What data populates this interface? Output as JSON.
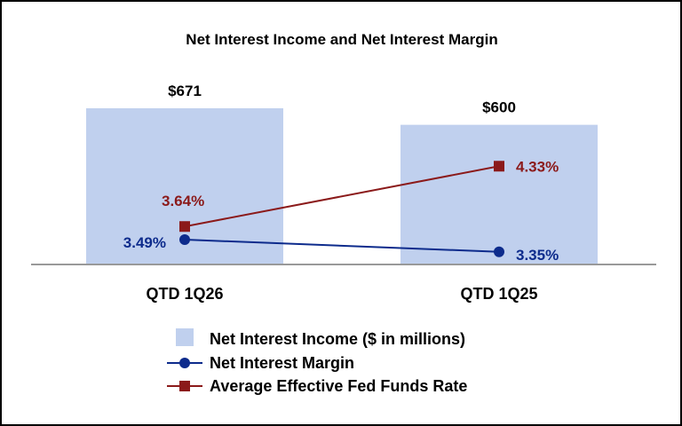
{
  "chart_data": {
    "type": "bar",
    "title": "Net Interest Income and Net Interest Margin",
    "categories": [
      "QTD 1Q26",
      "QTD 1Q25"
    ],
    "series": [
      {
        "name": "Net Interest Income ($ in millions)",
        "type": "bar",
        "values": [
          671,
          600
        ],
        "labels": [
          "$671",
          "$600"
        ],
        "color": "#c0d0ee"
      },
      {
        "name": "Net Interest Margin",
        "type": "line",
        "marker": "circle",
        "values": [
          3.49,
          3.35
        ],
        "labels": [
          "3.49%",
          "3.35%"
        ],
        "color": "#0d2b8c"
      },
      {
        "name": "Average Effective Fed Funds Rate",
        "type": "line",
        "marker": "square",
        "values": [
          3.64,
          4.33
        ],
        "labels": [
          "3.64%",
          "4.33%"
        ],
        "color": "#8b1a1a"
      }
    ],
    "legend_position": "bottom",
    "grid": false,
    "axis_color": "#999999"
  }
}
